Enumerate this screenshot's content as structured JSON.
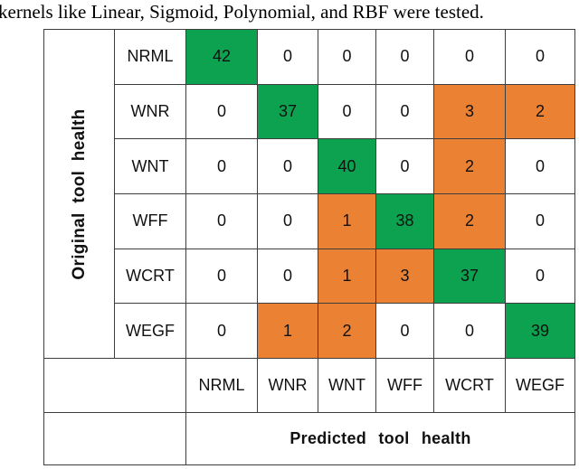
{
  "caption": "kernels like Linear, Sigmoid, Polynomial, and RBF were tested.",
  "chart_data": {
    "type": "heatmap",
    "title": "",
    "xlabel": "Predicted tool health",
    "ylabel": "Original tool health",
    "row_labels": [
      "NRML",
      "WNR",
      "WNT",
      "WFF",
      "WCRT",
      "WEGF"
    ],
    "col_labels": [
      "NRML",
      "WNR",
      "WNT",
      "WFF",
      "WCRT",
      "WEGF"
    ],
    "matrix": [
      [
        42,
        0,
        0,
        0,
        0,
        0
      ],
      [
        0,
        37,
        0,
        0,
        3,
        2
      ],
      [
        0,
        0,
        40,
        0,
        2,
        0
      ],
      [
        0,
        0,
        1,
        38,
        2,
        0
      ],
      [
        0,
        0,
        1,
        3,
        37,
        0
      ],
      [
        0,
        1,
        2,
        0,
        0,
        39
      ]
    ],
    "cell_highlight": [
      [
        "green",
        "white",
        "white",
        "white",
        "white",
        "white"
      ],
      [
        "white",
        "green",
        "white",
        "white",
        "orange",
        "orange"
      ],
      [
        "white",
        "white",
        "green",
        "white",
        "orange",
        "white"
      ],
      [
        "white",
        "white",
        "orange",
        "green",
        "orange",
        "white"
      ],
      [
        "white",
        "white",
        "orange",
        "orange",
        "green",
        "white"
      ],
      [
        "white",
        "orange",
        "orange",
        "white",
        "white",
        "green"
      ]
    ],
    "legend_position": "none",
    "grid": true
  },
  "colors": {
    "green": "#0CA24F",
    "orange": "#EB8233",
    "border": "#3D3D3D",
    "background": "#FFFFFF",
    "text": "#111111"
  }
}
